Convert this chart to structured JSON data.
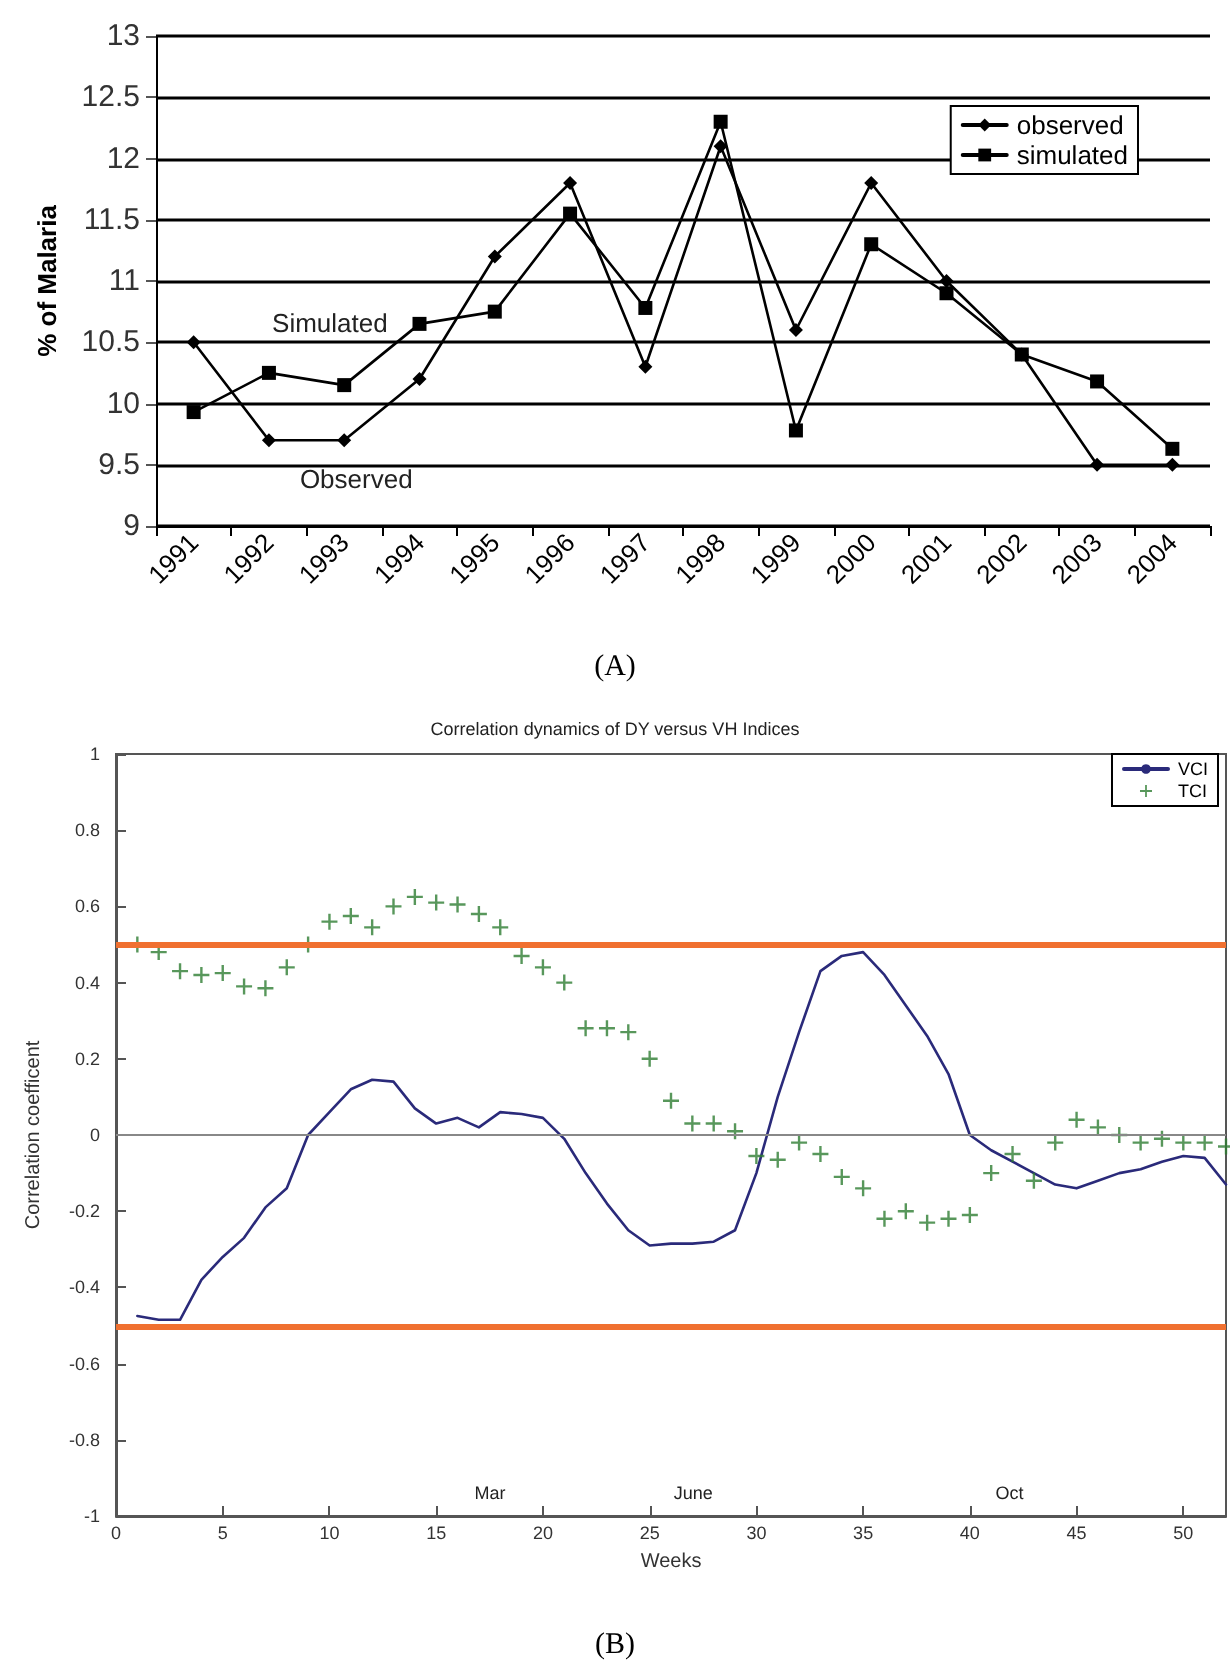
{
  "chart_data": [
    {
      "type": "line",
      "ylabel": "% of Malaria",
      "categories": [
        "1991",
        "1992",
        "1993",
        "1994",
        "1995",
        "1996",
        "1997",
        "1998",
        "1999",
        "2000",
        "2001",
        "2002",
        "2003",
        "2004"
      ],
      "series": [
        {
          "name": "observed",
          "color": "#000000",
          "marker": "diamond",
          "values": [
            10.5,
            9.7,
            9.7,
            10.2,
            11.2,
            11.8,
            10.3,
            12.1,
            10.6,
            11.8,
            11.0,
            10.4,
            9.5,
            9.5
          ]
        },
        {
          "name": "simulated",
          "color": "#000000",
          "marker": "square",
          "values": [
            9.93,
            10.25,
            10.15,
            10.65,
            10.75,
            11.55,
            10.78,
            12.3,
            9.78,
            11.3,
            10.9,
            10.4,
            10.18,
            9.63
          ]
        }
      ],
      "ylim": [
        9,
        13
      ],
      "yticks": [
        9,
        9.5,
        10,
        10.5,
        11,
        11.5,
        12,
        12.5,
        13
      ],
      "grid": "y",
      "legend": "top right",
      "annotations": [
        "Simulated",
        "Observed",
        "(A)"
      ]
    },
    {
      "type": "line",
      "title": "Correlation dynamics of DY versus VH Indices",
      "xlabel": "Weeks",
      "ylabel": "Correlation coefficent",
      "x": [
        1,
        2,
        3,
        4,
        5,
        6,
        7,
        8,
        9,
        10,
        11,
        12,
        13,
        14,
        15,
        16,
        17,
        18,
        19,
        20,
        21,
        22,
        23,
        24,
        25,
        26,
        27,
        28,
        29,
        30,
        31,
        32,
        33,
        34,
        35,
        36,
        37,
        38,
        39,
        40,
        41,
        42,
        43,
        44,
        45,
        46,
        47,
        48,
        49,
        50,
        51,
        52
      ],
      "series": [
        {
          "name": "VCI",
          "color": "#2a2a7a",
          "marker": "none",
          "values": [
            -0.475,
            -0.485,
            -0.485,
            -0.38,
            -0.32,
            -0.27,
            -0.19,
            -0.14,
            0.0,
            0.06,
            0.12,
            0.145,
            0.14,
            0.07,
            0.03,
            0.045,
            0.02,
            0.06,
            0.055,
            0.045,
            -0.01,
            -0.1,
            -0.18,
            -0.25,
            -0.29,
            -0.285,
            -0.285,
            -0.28,
            -0.25,
            -0.1,
            0.1,
            0.27,
            0.43,
            0.47,
            0.48,
            0.42,
            0.34,
            0.26,
            0.16,
            0.0,
            -0.04,
            -0.07,
            -0.1,
            -0.13,
            -0.14,
            -0.12,
            -0.1,
            -0.09,
            -0.07,
            -0.055,
            -0.06,
            -0.13
          ]
        },
        {
          "name": "TCI",
          "type": "scatter",
          "color": "#2e7d32",
          "marker": "cross",
          "values": [
            0.5,
            0.48,
            0.43,
            0.42,
            0.425,
            0.39,
            0.385,
            0.44,
            0.5,
            0.56,
            0.575,
            0.545,
            0.6,
            0.625,
            0.61,
            0.605,
            0.58,
            0.545,
            0.47,
            0.44,
            0.4,
            0.28,
            0.28,
            0.27,
            0.2,
            0.09,
            0.03,
            0.03,
            0.01,
            -0.055,
            -0.065,
            -0.02,
            -0.05,
            -0.11,
            -0.14,
            -0.22,
            -0.2,
            -0.23,
            -0.22,
            -0.21,
            -0.1,
            -0.05,
            -0.12,
            -0.02,
            0.04,
            0.02,
            0.0,
            -0.02,
            -0.01,
            -0.02,
            -0.02,
            -0.03
          ]
        }
      ],
      "xlim": [
        0,
        52
      ],
      "xticks": [
        0,
        5,
        10,
        15,
        20,
        25,
        30,
        35,
        40,
        45,
        50
      ],
      "ylim": [
        -1,
        1
      ],
      "yticks": [
        -1,
        -0.8,
        -0.6,
        -0.4,
        -0.2,
        0,
        0.2,
        0.4,
        0.6,
        0.8,
        1
      ],
      "legend": "top right",
      "ref_lines": [
        {
          "axis": "y",
          "value": 0.5,
          "color": "#f07030"
        },
        {
          "axis": "y",
          "value": -0.5,
          "color": "#f07030"
        },
        {
          "axis": "y",
          "value": 0,
          "color": "#888888"
        }
      ],
      "annotations": [
        "Mar",
        "June",
        "Oct",
        "(B)"
      ]
    }
  ]
}
